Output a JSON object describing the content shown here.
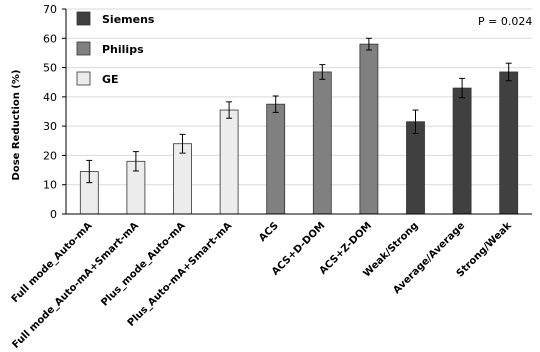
{
  "chart_data": {
    "type": "bar",
    "ylabel": "Dose Reduction  (%)",
    "ylim": [
      0,
      70
    ],
    "yticks": [
      0,
      10,
      20,
      30,
      40,
      50,
      60,
      70
    ],
    "grid": true,
    "legend_position": "top-left",
    "annotation": "P = 0.024",
    "categories": [
      "Full mode_Auto-mA",
      "Full mode_Auto-mA+Smart-mA",
      "Plus_mode_Auto-mA",
      "Plus_Auto-mA+Smart-mA",
      "ACS",
      "ACS+D-DOM",
      "ACS+Z-DOM",
      "Weak/Strong",
      "Average/Average",
      "Strong/Weak"
    ],
    "values": [
      14.5,
      18,
      24,
      35.5,
      37.5,
      48.5,
      58,
      31.5,
      43,
      48.5
    ],
    "errors": [
      3.8,
      3.3,
      3.2,
      2.8,
      2.8,
      2.5,
      2.0,
      4.0,
      3.3,
      3.0
    ],
    "groups": [
      0,
      0,
      0,
      0,
      1,
      1,
      1,
      2,
      2,
      2
    ],
    "legend": [
      {
        "name": "Siemens",
        "color": "#404040"
      },
      {
        "name": "Philips",
        "color": "#808080"
      },
      {
        "name": "GE",
        "color": "#ececec"
      }
    ],
    "group_colors": [
      "#ececec",
      "#808080",
      "#404040"
    ]
  }
}
